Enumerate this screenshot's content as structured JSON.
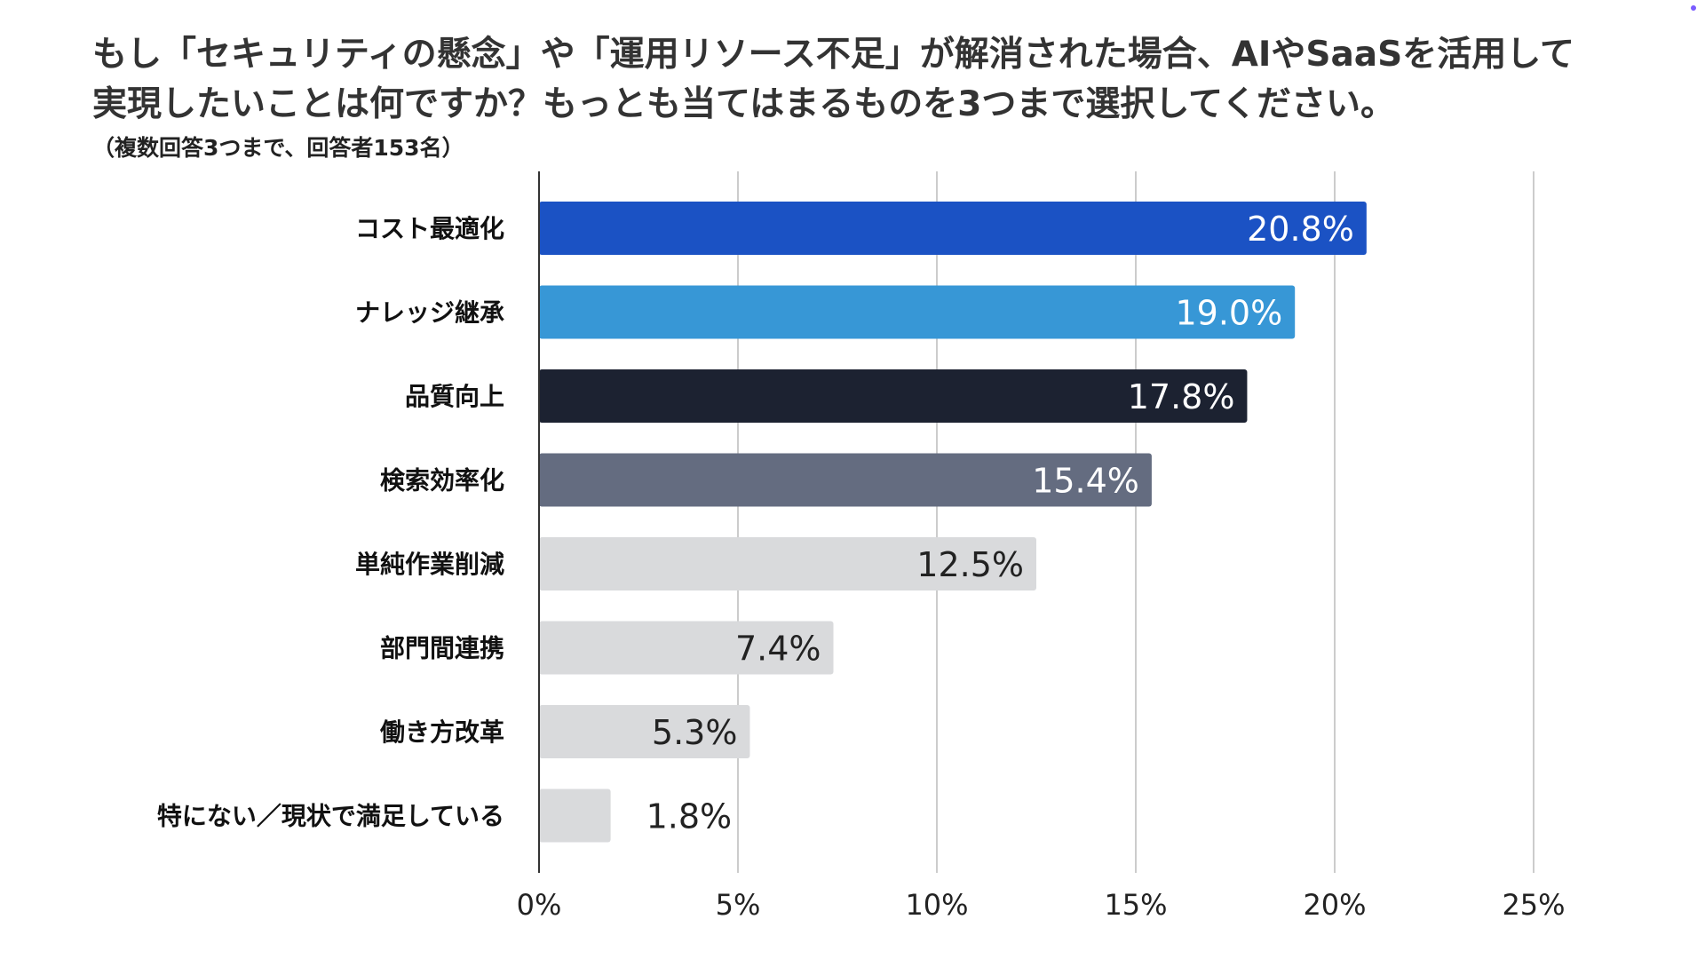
{
  "header": {
    "title_line1": "もし「セキュリティの懸念」や「運用リソース不足」が解消された場合、AIやSaaSを活用して",
    "title_line2": "実現したいことは何ですか？もっとも当てはまるものを3つまで選択してください。",
    "subtitle": "（複数回答3つまで、回答者153名）"
  },
  "chart_data": {
    "type": "bar",
    "orientation": "horizontal",
    "categories": [
      "コスト最適化",
      "ナレッジ継承",
      "品質向上",
      "検索効率化",
      "単純作業削減",
      "部門間連携",
      "働き方改革",
      "特にない／現状で満足している"
    ],
    "values": [
      20.8,
      19.0,
      17.8,
      15.4,
      12.5,
      7.4,
      5.3,
      1.8
    ],
    "value_labels": [
      "20.8%",
      "19.0%",
      "17.8%",
      "15.4%",
      "12.5%",
      "7.4%",
      "5.3%",
      "1.8%"
    ],
    "bar_colors": [
      "#1b52c4",
      "#3797d6",
      "#1c2231",
      "#646c80",
      "#d9dadc",
      "#d9dadc",
      "#d9dadc",
      "#d9dadc"
    ],
    "value_label_colors": [
      "#ffffff",
      "#ffffff",
      "#ffffff",
      "#ffffff",
      "#222222",
      "#222222",
      "#222222",
      "#222222"
    ],
    "value_label_inside": [
      true,
      true,
      true,
      true,
      true,
      true,
      true,
      false
    ],
    "xlim": [
      0,
      25
    ],
    "xticks": [
      0,
      5,
      10,
      15,
      20,
      25
    ],
    "xtick_labels": [
      "0%",
      "5%",
      "10%",
      "15%",
      "20%",
      "25%"
    ],
    "grid": true,
    "grid_color": "#cccccc"
  }
}
